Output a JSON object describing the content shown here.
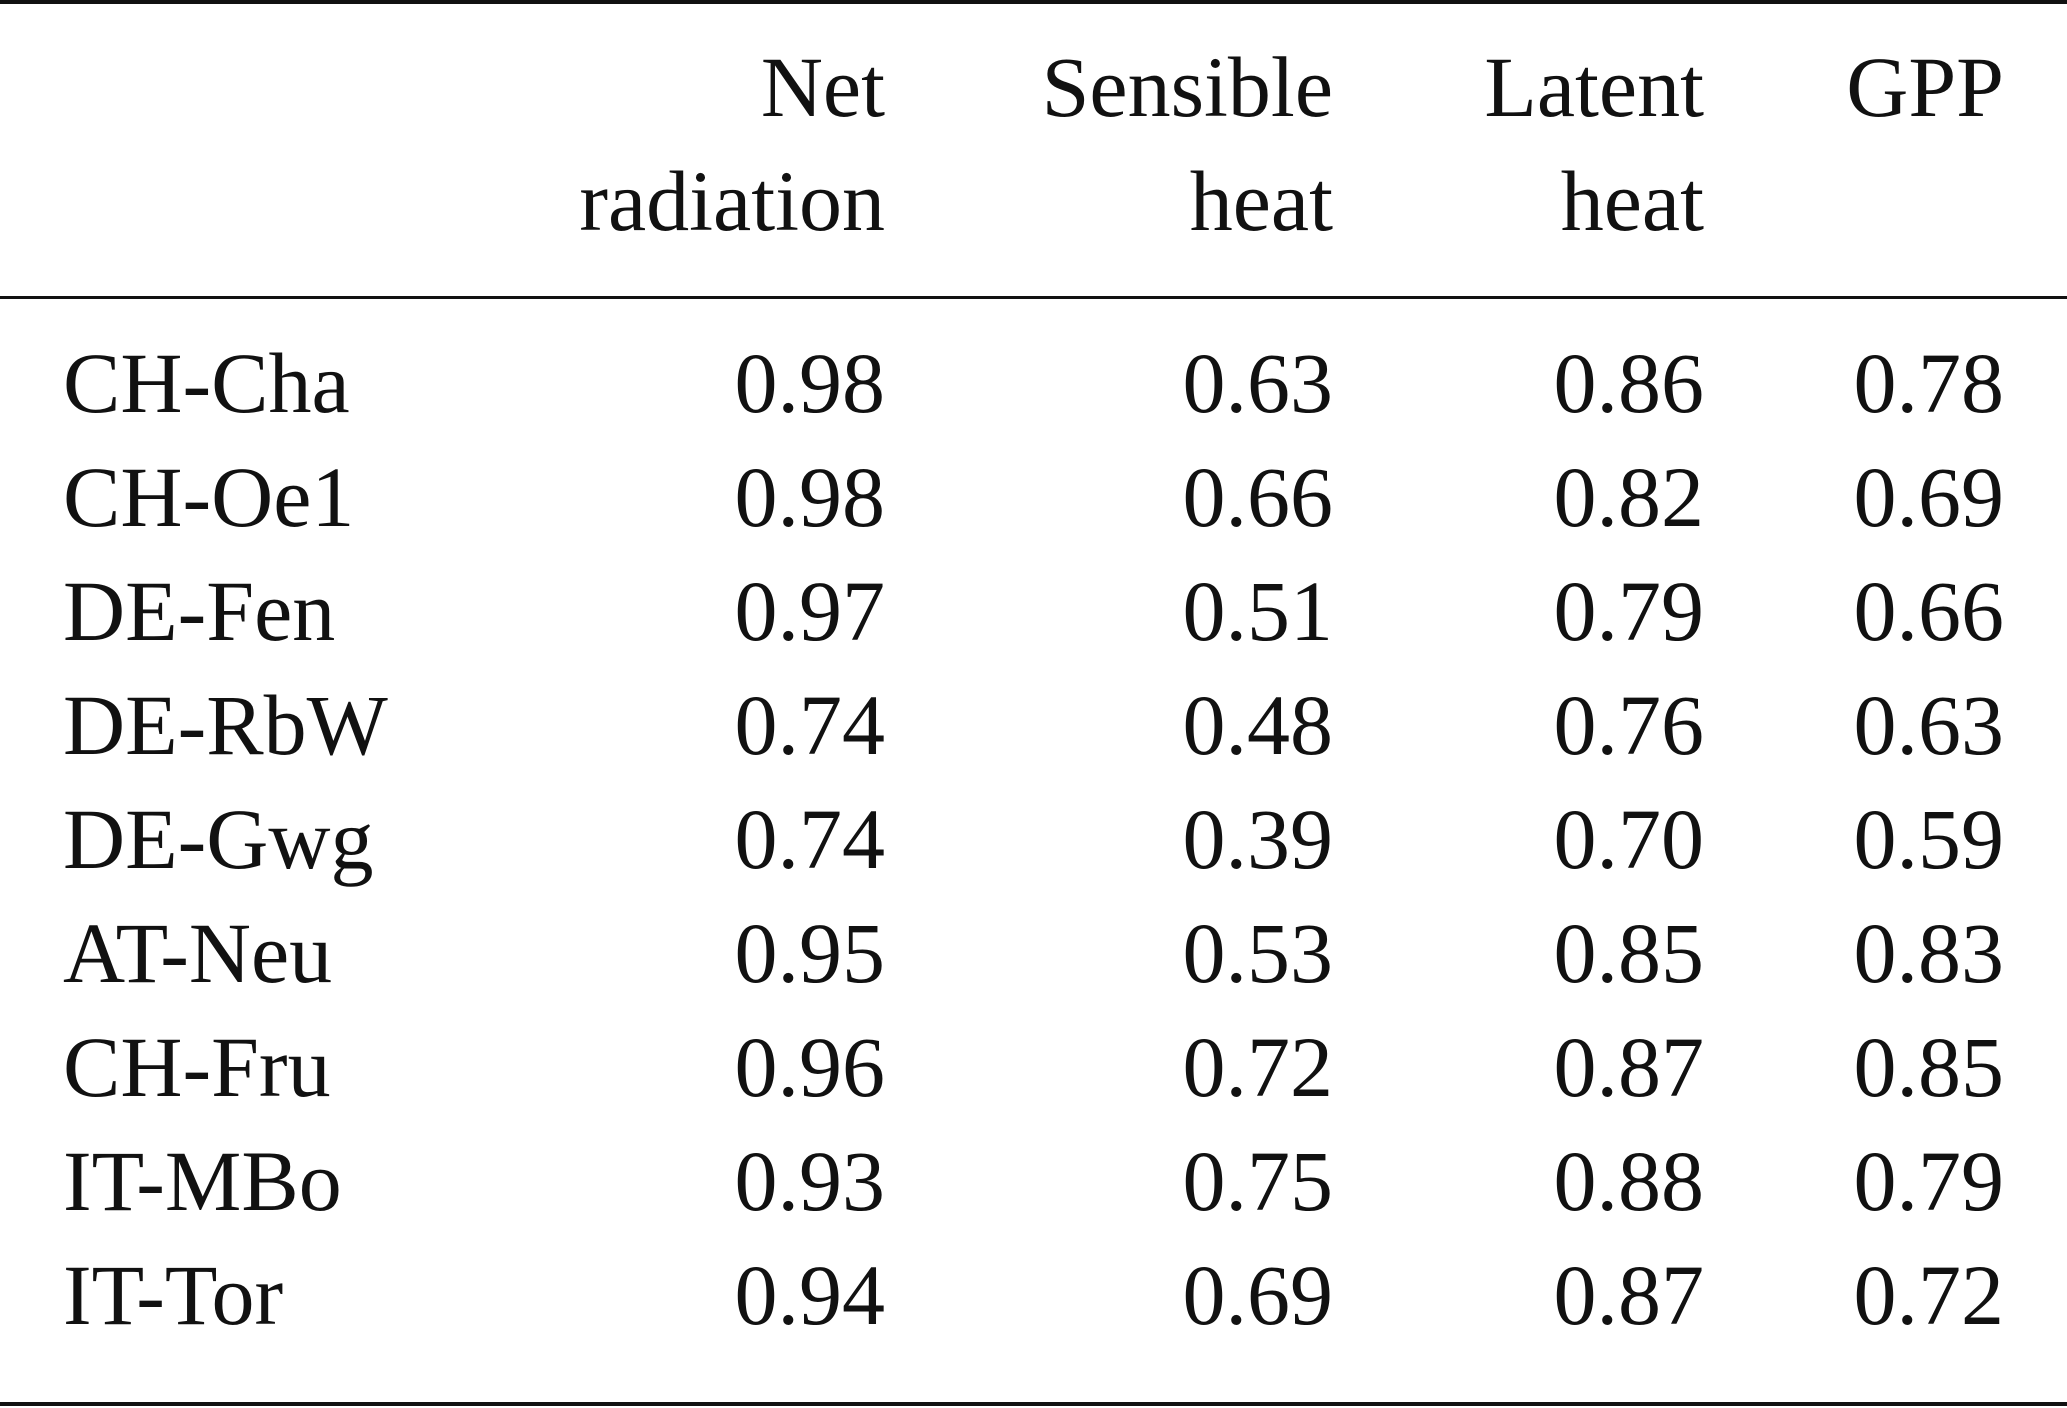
{
  "table": {
    "columns": [
      {
        "line1": "Net",
        "line2": "radiation"
      },
      {
        "line1": "Sensible",
        "line2": "heat"
      },
      {
        "line1": "Latent",
        "line2": "heat"
      },
      {
        "line1": "GPP",
        "line2": ""
      }
    ],
    "rows": [
      {
        "site": "CH-Cha",
        "values": [
          "0.98",
          "0.63",
          "0.86",
          "0.78"
        ]
      },
      {
        "site": "CH-Oe1",
        "values": [
          "0.98",
          "0.66",
          "0.82",
          "0.69"
        ]
      },
      {
        "site": "DE-Fen",
        "values": [
          "0.97",
          "0.51",
          "0.79",
          "0.66"
        ]
      },
      {
        "site": "DE-RbW",
        "values": [
          "0.74",
          "0.48",
          "0.76",
          "0.63"
        ]
      },
      {
        "site": "DE-Gwg",
        "values": [
          "0.74",
          "0.39",
          "0.70",
          "0.59"
        ]
      },
      {
        "site": "AT-Neu",
        "values": [
          "0.95",
          "0.53",
          "0.85",
          "0.83"
        ]
      },
      {
        "site": "CH-Fru",
        "values": [
          "0.96",
          "0.72",
          "0.87",
          "0.85"
        ]
      },
      {
        "site": "IT-MBo",
        "values": [
          "0.93",
          "0.75",
          "0.88",
          "0.79"
        ]
      },
      {
        "site": "IT-Tor",
        "values": [
          "0.94",
          "0.69",
          "0.87",
          "0.72"
        ]
      }
    ]
  }
}
